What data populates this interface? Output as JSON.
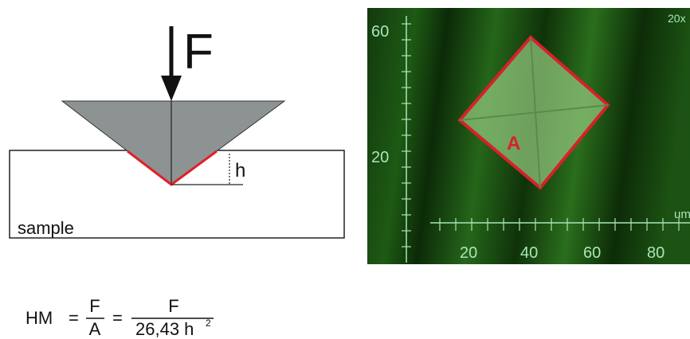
{
  "indenter": {
    "force_label": "F",
    "depth_label": "h",
    "sample_label": "sample"
  },
  "micrograph": {
    "area_label": "A",
    "magnification": "20x",
    "unit": "um",
    "y_axis_labels": [
      "60",
      "20"
    ],
    "x_axis_labels": [
      "20",
      "40",
      "60",
      "80"
    ]
  },
  "formula": {
    "lhs": "HM",
    "eq1": "=",
    "frac1": {
      "numerator": "F",
      "denominator": "A"
    },
    "eq2": "=",
    "frac2": {
      "numerator": "F",
      "denominator": "26,43 h",
      "superscript": "2"
    }
  }
}
